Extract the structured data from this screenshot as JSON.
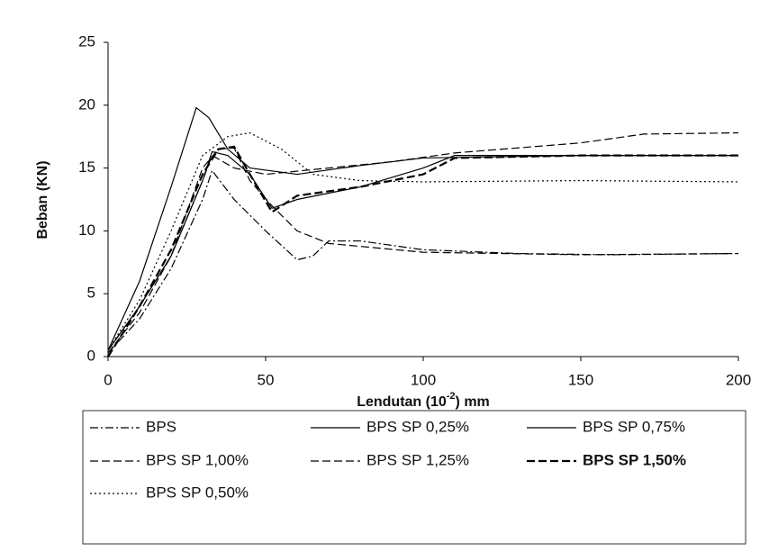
{
  "chart_data": {
    "type": "line",
    "xlabel": [
      "Lendutan (10",
      "-2",
      ") mm"
    ],
    "ylabel": "Beban (KN)",
    "xlim": [
      0,
      200
    ],
    "xticks": [
      0,
      50,
      100,
      150,
      200
    ],
    "ylim": [
      0,
      25
    ],
    "yticks": [
      0,
      5,
      10,
      15,
      20,
      25
    ],
    "legend": "bottom",
    "series": [
      {
        "name": "BPS",
        "color": "#000000",
        "style": "dashdot",
        "bold": false,
        "x": [
          0,
          10,
          20,
          30,
          33,
          40,
          50,
          60,
          65,
          70,
          80,
          100,
          130,
          160,
          200
        ],
        "values": [
          0.3,
          3,
          7,
          12.5,
          14.8,
          12.5,
          10,
          7.7,
          8,
          9.2,
          9.2,
          8.5,
          8.2,
          8.1,
          8.2
        ]
      },
      {
        "name": "BPS SP 0,25%",
        "color": "#000000",
        "style": "solid",
        "bold": false,
        "x": [
          0,
          10,
          20,
          30,
          33,
          38,
          45,
          52,
          60,
          80,
          100,
          110,
          200
        ],
        "values": [
          0.5,
          4,
          8,
          14,
          16.3,
          16,
          14.5,
          11.8,
          12.5,
          13.5,
          15,
          16,
          16
        ]
      },
      {
        "name": "BPS SP 0,75%",
        "color": "#000000",
        "style": "solid",
        "bold": false,
        "x": [
          0,
          10,
          20,
          28,
          32,
          38,
          45,
          60,
          80,
          100,
          150,
          200
        ],
        "values": [
          0.5,
          6,
          13.5,
          19.8,
          19,
          16.5,
          15,
          14.5,
          15.2,
          15.8,
          16,
          16
        ]
      },
      {
        "name": "BPS SP 1,00%",
        "color": "#000000",
        "style": "dashed",
        "bold": false,
        "x": [
          0,
          10,
          20,
          30,
          35,
          40,
          45,
          52,
          60,
          70,
          100,
          150,
          200
        ],
        "values": [
          0.3,
          3.5,
          8,
          15,
          16.5,
          16.6,
          14,
          12,
          10,
          9,
          8.3,
          8.1,
          8.2
        ]
      },
      {
        "name": "BPS SP 1,25%",
        "color": "#000000",
        "style": "dashed",
        "bold": false,
        "x": [
          0,
          10,
          20,
          30,
          33,
          40,
          50,
          70,
          90,
          110,
          150,
          170,
          200
        ],
        "values": [
          0.5,
          4,
          8,
          14,
          16,
          15,
          14.5,
          15,
          15.5,
          16.2,
          17,
          17.7,
          17.8
        ]
      },
      {
        "name": "BPS SP 1,50%",
        "color": "#000000",
        "style": "dashed",
        "bold": true,
        "x": [
          0,
          10,
          20,
          30,
          35,
          40,
          45,
          52,
          60,
          80,
          100,
          110,
          150,
          200
        ],
        "values": [
          0,
          4,
          8.5,
          14.5,
          16.5,
          16.7,
          14.5,
          11.5,
          12.8,
          13.5,
          14.5,
          15.8,
          16,
          16
        ]
      },
      {
        "name": "BPS SP 0,50%",
        "color": "#000000",
        "style": "dotted",
        "bold": false,
        "x": [
          0,
          10,
          20,
          30,
          38,
          45,
          55,
          65,
          80,
          100,
          150,
          200
        ],
        "values": [
          0.5,
          4.5,
          10,
          16,
          17.5,
          17.8,
          16.5,
          14.5,
          14,
          13.9,
          14,
          13.9
        ]
      }
    ]
  }
}
